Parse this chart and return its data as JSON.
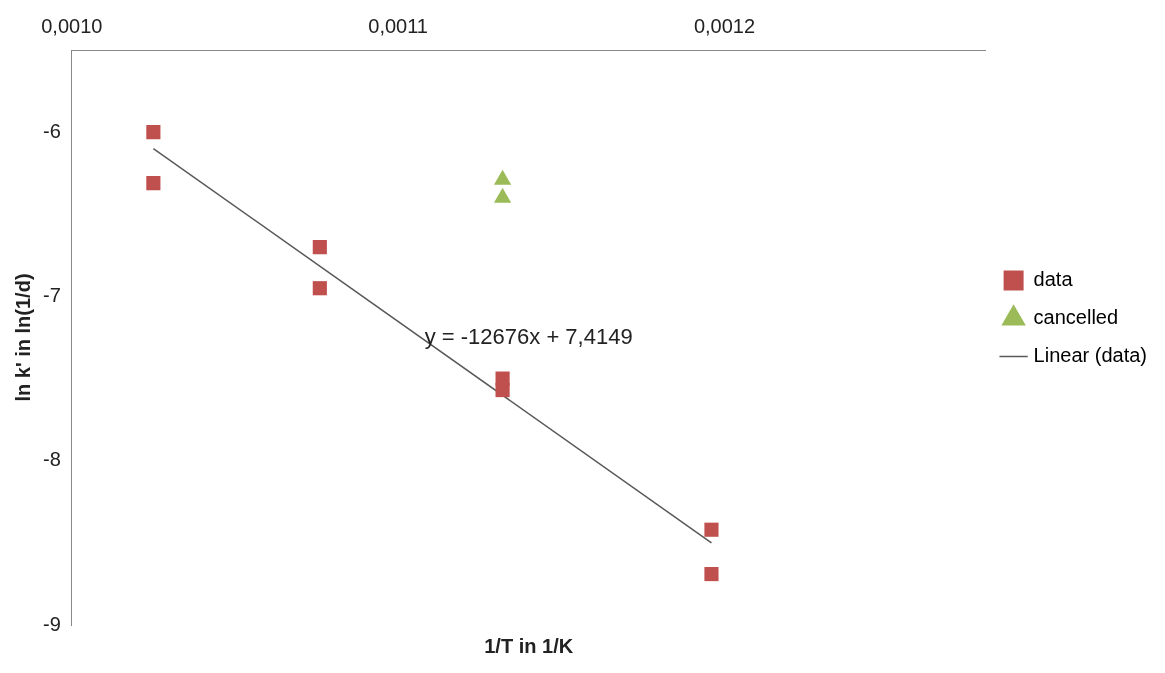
{
  "chart_data": {
    "type": "scatter",
    "xlabel": "1/T in 1/K",
    "ylabel": "ln k' in ln(1/d)",
    "xlim": [
      0.001,
      0.00128
    ],
    "xticks": [
      {
        "value": 0.001,
        "label": "0,0010"
      },
      {
        "value": 0.0011,
        "label": "0,0011"
      },
      {
        "value": 0.0012,
        "label": "0,0012"
      }
    ],
    "ylim": [
      -9,
      -5.5
    ],
    "yticks": [
      -9,
      -8,
      -7,
      -6
    ],
    "series": [
      {
        "name": "data",
        "color": "#c0504d",
        "marker": "square",
        "x": [
          0.001025,
          0.001025,
          0.001076,
          0.001076,
          0.001132,
          0.001132,
          0.001196,
          0.001196
        ],
        "values": [
          -6.0,
          -6.31,
          -6.7,
          -6.95,
          -7.5,
          -7.57,
          -8.42,
          -8.69
        ]
      },
      {
        "name": "cancelled",
        "color": "#9bbb59",
        "marker": "triangle",
        "x": [
          0.001132,
          0.001132
        ],
        "values": [
          -6.29,
          -6.4
        ]
      },
      {
        "name": "Linear (data)",
        "type": "line",
        "color": "#595959",
        "marker": "none",
        "x": [
          0.001025,
          0.001196
        ],
        "values": [
          -6.1,
          -8.5
        ]
      }
    ],
    "annotations": [
      "y = -12676x + 7,4149"
    ],
    "legend": "right",
    "grid": false
  }
}
